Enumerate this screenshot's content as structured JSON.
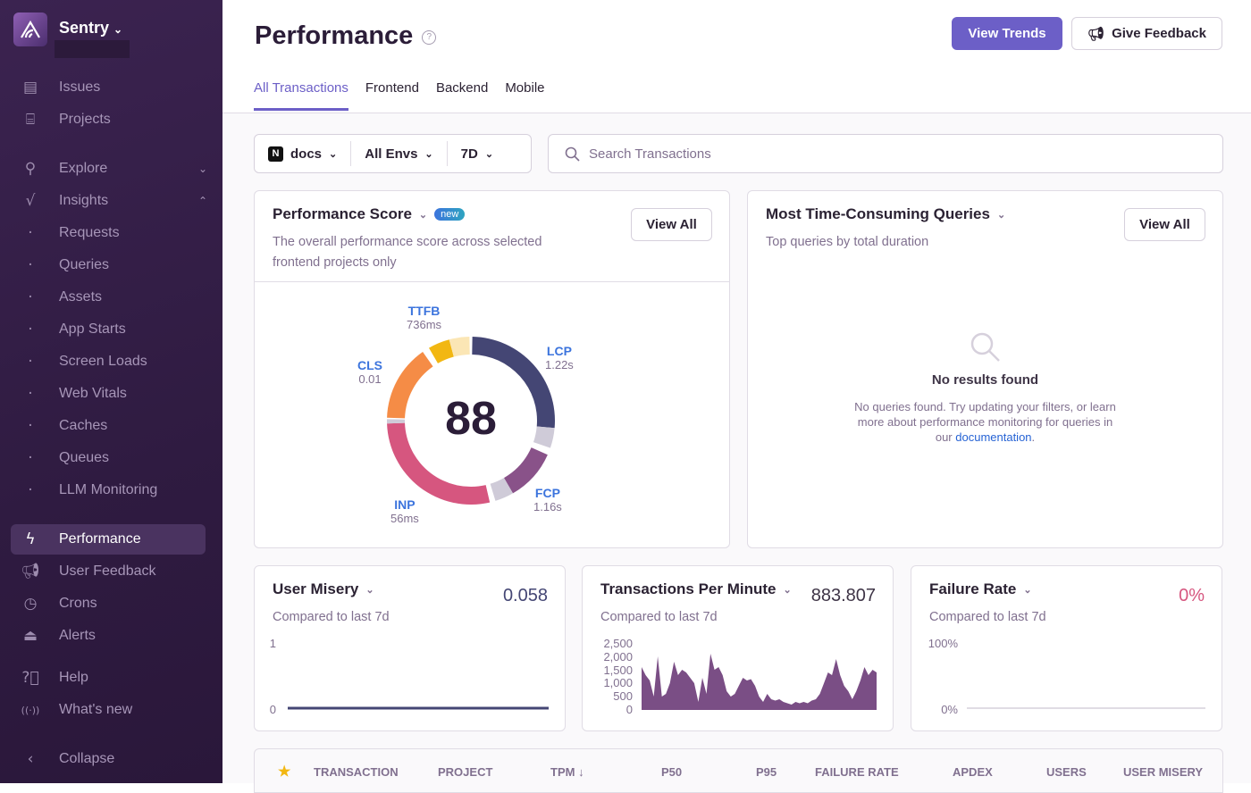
{
  "sidebar": {
    "org": "Sentry",
    "items": [
      {
        "label": "Issues",
        "icon": "issues-icon"
      },
      {
        "label": "Projects",
        "icon": "projects-icon"
      },
      {
        "label": "Explore",
        "icon": "search-icon"
      },
      {
        "label": "Insights",
        "icon": "insights-icon"
      },
      {
        "label": "Requests"
      },
      {
        "label": "Queries"
      },
      {
        "label": "Assets"
      },
      {
        "label": "App Starts"
      },
      {
        "label": "Screen Loads"
      },
      {
        "label": "Web Vitals"
      },
      {
        "label": "Caches"
      },
      {
        "label": "Queues"
      },
      {
        "label": "LLM Monitoring"
      },
      {
        "label": "Performance",
        "icon": "lightning-icon",
        "active": true
      },
      {
        "label": "User Feedback",
        "icon": "megaphone-icon"
      },
      {
        "label": "Crons",
        "icon": "clock-icon"
      },
      {
        "label": "Alerts",
        "icon": "siren-icon"
      },
      {
        "label": "Help",
        "icon": "help-icon"
      },
      {
        "label": "What's new",
        "icon": "broadcast-icon"
      },
      {
        "label": "Collapse",
        "icon": "chevron-left-icon"
      }
    ]
  },
  "header": {
    "title": "Performance",
    "view_trends": "View Trends",
    "give_feedback": "Give Feedback",
    "tabs": [
      "All Transactions",
      "Frontend",
      "Backend",
      "Mobile"
    ]
  },
  "filters": {
    "project": "docs",
    "env": "All Envs",
    "period": "7D",
    "search_placeholder": "Search Transactions"
  },
  "perf_score": {
    "title": "Performance Score",
    "badge": "new",
    "subtitle1": "The overall performance score across selected",
    "subtitle2": "frontend projects only",
    "view_all": "View All",
    "score": "88",
    "vitals": [
      {
        "name": "TTFB",
        "value": "736ms",
        "color": "#f2b712"
      },
      {
        "name": "LCP",
        "value": "1.22s",
        "color": "#444674"
      },
      {
        "name": "CLS",
        "value": "0.01",
        "color": "#f58c46"
      },
      {
        "name": "FCP",
        "value": "1.16s",
        "color": "#895289"
      },
      {
        "name": "INP",
        "value": "56ms",
        "color": "#d6567f"
      }
    ]
  },
  "queries": {
    "title": "Most Time-Consuming Queries",
    "subtitle": "Top queries by total duration",
    "view_all": "View All",
    "empty_title": "No results found",
    "empty_text1": "No queries found. Try updating your filters, or learn",
    "empty_text2": "more about performance monitoring for queries in",
    "empty_text3": "our ",
    "empty_link": "documentation",
    "empty_text4": "."
  },
  "metrics": [
    {
      "title": "User Misery",
      "compare": "Compared to last 7d",
      "value": "0.058",
      "axis": [
        "1",
        "0"
      ],
      "color": "#444674"
    },
    {
      "title": "Transactions Per Minute",
      "compare": "Compared to last 7d",
      "value": "883.807",
      "axis": [
        "2,500",
        "2,000",
        "1,500",
        "1,000",
        "500",
        "0"
      ],
      "color": "#3e3446"
    },
    {
      "title": "Failure Rate",
      "compare": "Compared to last 7d",
      "value": "0%",
      "axis": [
        "100%",
        "0%"
      ],
      "color": "#d6567f"
    }
  ],
  "chart_data": {
    "type": "area",
    "series": [
      {
        "values": [
          1600,
          1300,
          1100,
          500,
          2000,
          500,
          600,
          1000,
          1800,
          1300,
          1500,
          1400,
          1200,
          1000,
          300,
          1200,
          600,
          2100,
          1500,
          1600,
          1300,
          700,
          500,
          600,
          900,
          1200,
          1100,
          1150,
          900,
          500,
          300,
          600,
          400,
          350,
          400,
          300,
          250,
          200,
          300,
          250,
          300,
          250,
          350,
          400,
          600,
          1000,
          1400,
          1300,
          1900,
          1300,
          900,
          700,
          400,
          700,
          1100,
          1600,
          1300,
          1500,
          1400
        ]
      }
    ],
    "ylim": [
      0,
      2500
    ]
  },
  "table": {
    "columns": [
      "TRANSACTION",
      "PROJECT",
      "TPM",
      "P50",
      "P95",
      "FAILURE RATE",
      "APDEX",
      "USERS",
      "USER MISERY"
    ]
  }
}
